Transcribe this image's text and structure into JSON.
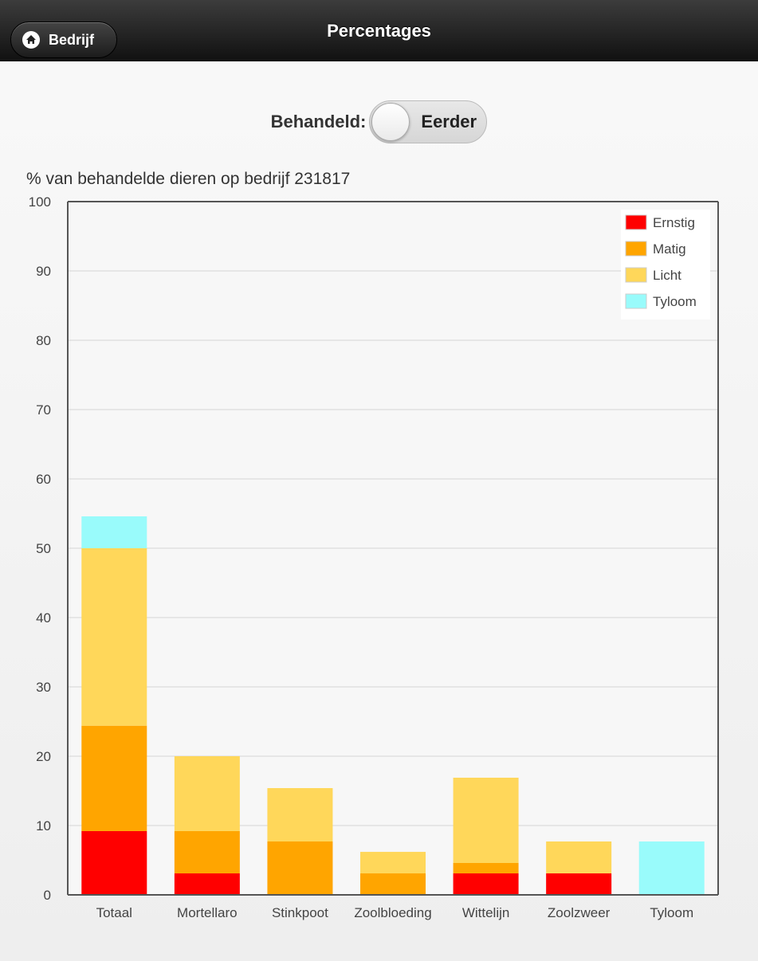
{
  "header": {
    "title": "Percentages",
    "back_label": "Bedrijf",
    "back_icon": "home-icon"
  },
  "toggle": {
    "label": "Behandeld:",
    "value": "Eerder"
  },
  "chart_data": {
    "type": "bar",
    "stacked": true,
    "title": "% van behandelde dieren op bedrijf 231817",
    "categories": [
      "Totaal",
      "Mortellaro",
      "Stinkpoot",
      "Zoolbloeding",
      "Wittelijn",
      "Zoolzweer",
      "Tyloom"
    ],
    "series": [
      {
        "name": "Ernstig",
        "color": "#ff0000",
        "values": [
          9.2,
          3.1,
          0,
          0,
          3.1,
          3.1,
          0
        ]
      },
      {
        "name": "Matig",
        "color": "#ffa500",
        "values": [
          15.2,
          6.1,
          7.7,
          3.1,
          1.5,
          0,
          0
        ]
      },
      {
        "name": "Licht",
        "color": "#ffd75a",
        "values": [
          25.6,
          10.8,
          7.7,
          3.1,
          12.3,
          4.6,
          0
        ]
      },
      {
        "name": "Tyloom",
        "color": "#99fbfb",
        "values": [
          4.6,
          0,
          0,
          0,
          0,
          0,
          7.7
        ]
      }
    ],
    "ylim": [
      0,
      100
    ],
    "yticks": [
      0,
      10,
      20,
      30,
      40,
      50,
      60,
      70,
      80,
      90,
      100
    ],
    "grid": true,
    "legend_position": "top-right"
  }
}
